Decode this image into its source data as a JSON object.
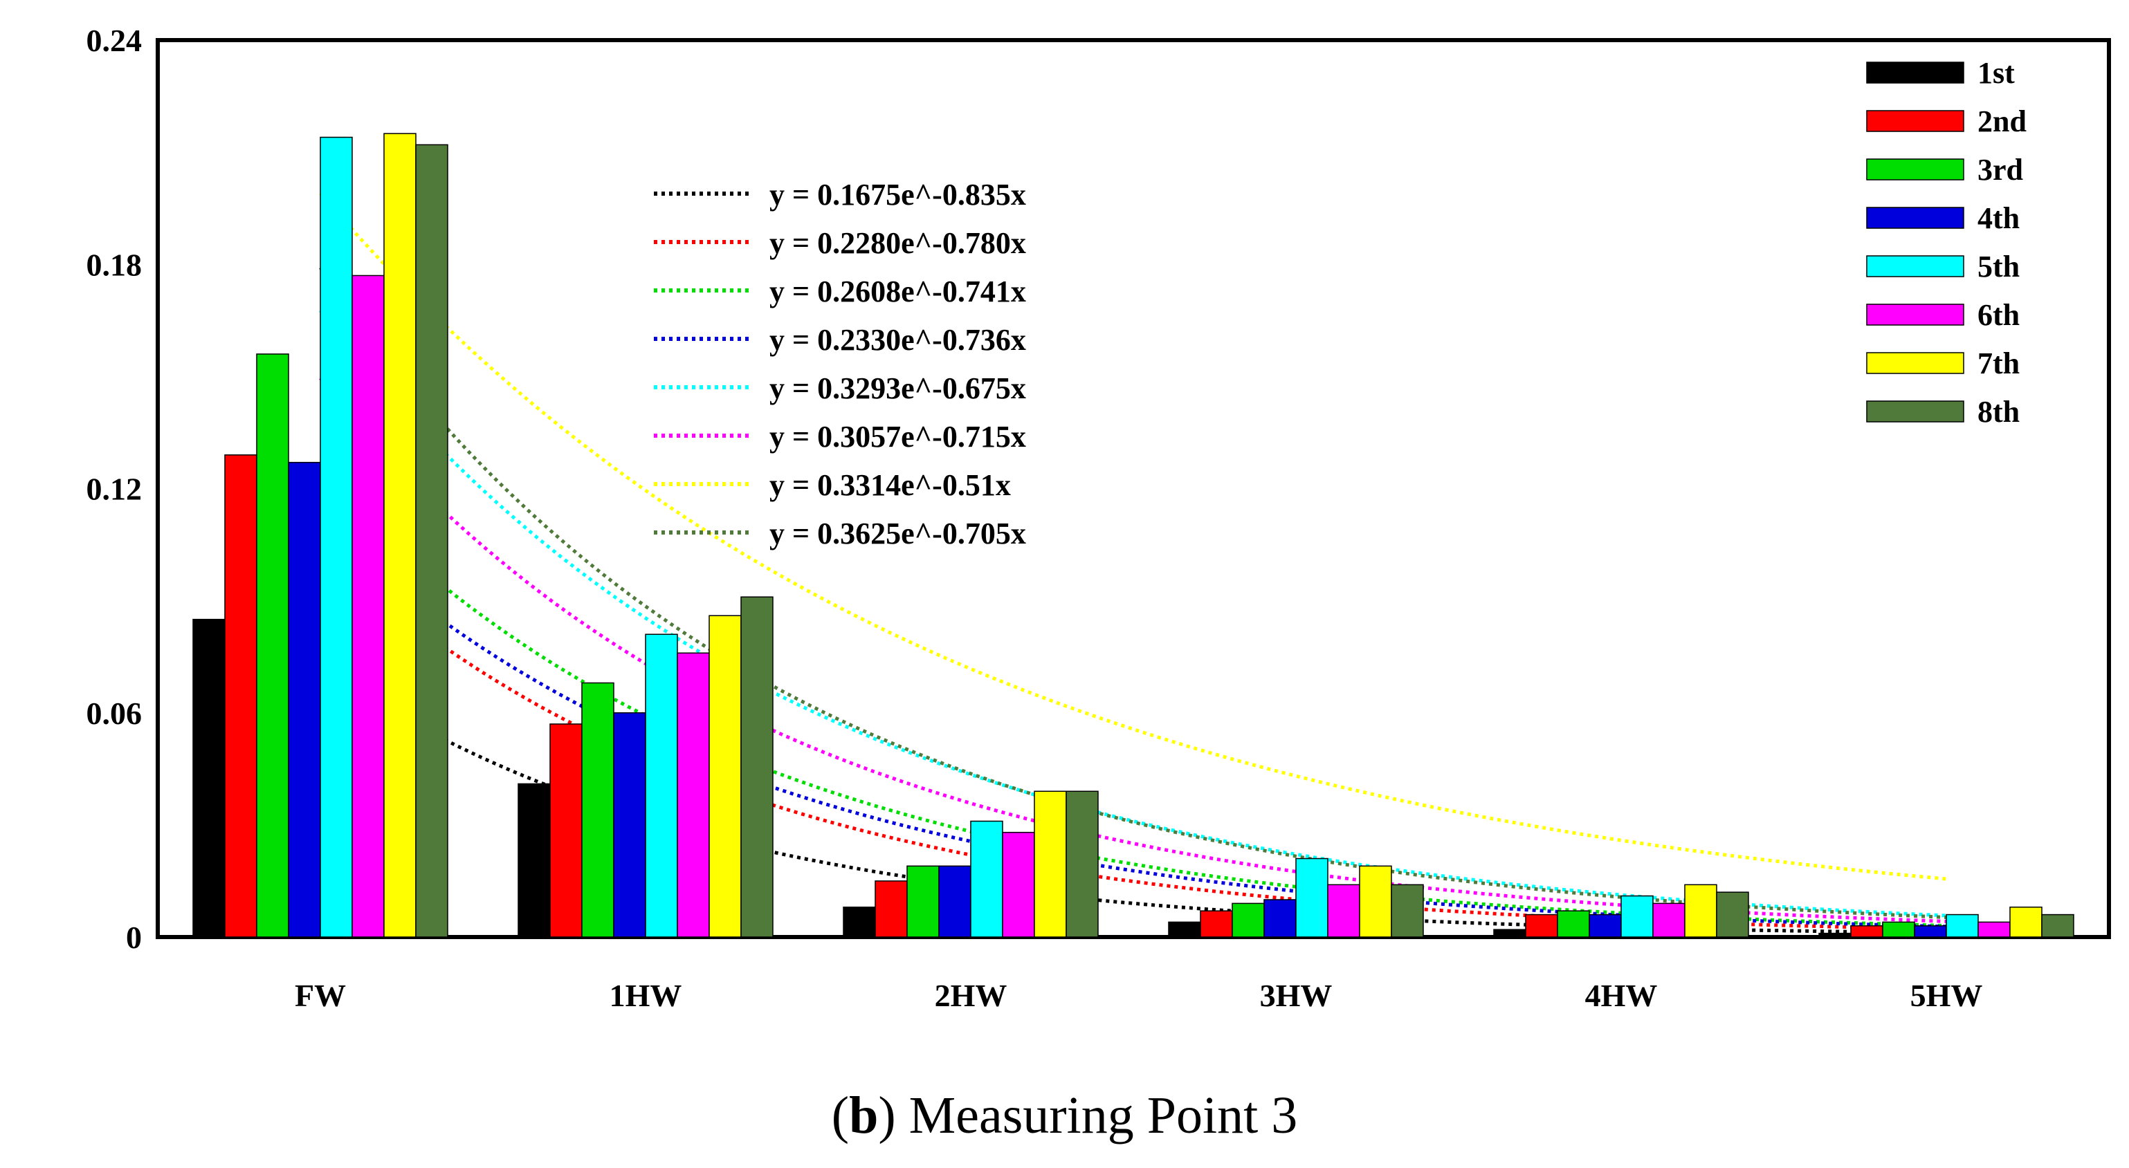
{
  "chart_data": {
    "type": "bar",
    "title": "",
    "xlabel": "",
    "ylabel": "",
    "ylim": [
      0,
      0.24
    ],
    "yticks": [
      "0",
      "0.06",
      "0.12",
      "0.18",
      "0.24"
    ],
    "categories": [
      "FW",
      "1HW",
      "2HW",
      "3HW",
      "4HW",
      "5HW"
    ],
    "legend_position": "top-right",
    "series": [
      {
        "name": "1st",
        "color": "#000000",
        "values": [
          0.085,
          0.041,
          0.008,
          0.004,
          0.002,
          0.001
        ]
      },
      {
        "name": "2nd",
        "color": "#ff0000",
        "values": [
          0.129,
          0.057,
          0.015,
          0.007,
          0.006,
          0.003
        ]
      },
      {
        "name": "3rd",
        "color": "#00dd00",
        "values": [
          0.156,
          0.068,
          0.019,
          0.009,
          0.007,
          0.004
        ]
      },
      {
        "name": "4th",
        "color": "#0000dd",
        "values": [
          0.127,
          0.06,
          0.019,
          0.01,
          0.006,
          0.003
        ]
      },
      {
        "name": "5th",
        "color": "#00ffff",
        "values": [
          0.214,
          0.081,
          0.031,
          0.021,
          0.011,
          0.006
        ]
      },
      {
        "name": "6th",
        "color": "#ff00ff",
        "values": [
          0.177,
          0.076,
          0.028,
          0.014,
          0.009,
          0.004
        ]
      },
      {
        "name": "7th",
        "color": "#ffff00",
        "values": [
          0.215,
          0.086,
          0.039,
          0.019,
          0.014,
          0.008
        ]
      },
      {
        "name": "8th",
        "color": "#4f7a3a",
        "values": [
          0.212,
          0.091,
          0.039,
          0.014,
          0.012,
          0.006
        ]
      }
    ],
    "trendlines": [
      {
        "label": "y = 0.1675e^-0.835x",
        "color": "#000000",
        "a": 0.1675,
        "b": 0.835
      },
      {
        "label": "y = 0.2280e^-0.780x",
        "color": "#ff0000",
        "a": 0.228,
        "b": 0.78
      },
      {
        "label": "y = 0.2608e^-0.741x",
        "color": "#00dd00",
        "a": 0.2608,
        "b": 0.741
      },
      {
        "label": "y = 0.2330e^-0.736x",
        "color": "#0000dd",
        "a": 0.233,
        "b": 0.736
      },
      {
        "label": "y = 0.3293e^-0.675x",
        "color": "#00ffff",
        "a": 0.3293,
        "b": 0.675
      },
      {
        "label": "y = 0.3057e^-0.715x",
        "color": "#ff00ff",
        "a": 0.3057,
        "b": 0.715
      },
      {
        "label": "y = 0.3314e^-0.51x",
        "color": "#ffff00",
        "a": 0.3314,
        "b": 0.51
      },
      {
        "label": "y = 0.3625e^-0.705x",
        "color": "#4f7a3a",
        "a": 0.3625,
        "b": 0.705
      }
    ]
  },
  "caption": {
    "letter": "b",
    "text": "Measuring Point 3"
  }
}
